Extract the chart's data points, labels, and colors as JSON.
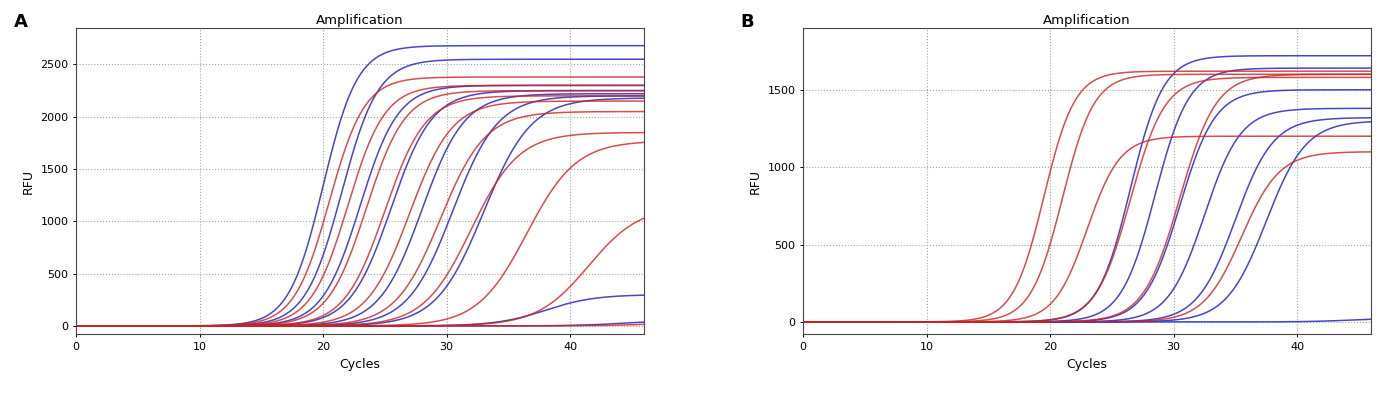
{
  "title": "Amplification",
  "xlabel": "Cycles",
  "ylabel": "RFU",
  "panel_A_label": "A",
  "panel_B_label": "B",
  "blue_color": "#3333bb",
  "red_color": "#cc2222",
  "background": "#ffffff",
  "grid_color": "#999999",
  "panel_A": {
    "xlim": [
      0,
      46
    ],
    "ylim": [
      -80,
      2850
    ],
    "yticks": [
      0,
      500,
      1000,
      1500,
      2000,
      2500
    ],
    "xticks": [
      0,
      10,
      20,
      30,
      40
    ],
    "blue_curves": [
      {
        "midpoint": 20.0,
        "L": 2680,
        "k": 0.72
      },
      {
        "midpoint": 21.5,
        "L": 2550,
        "k": 0.68
      },
      {
        "midpoint": 23.0,
        "L": 2300,
        "k": 0.65
      },
      {
        "midpoint": 25.5,
        "L": 2250,
        "k": 0.6
      },
      {
        "midpoint": 28.0,
        "L": 2220,
        "k": 0.58
      },
      {
        "midpoint": 30.5,
        "L": 2200,
        "k": 0.55
      },
      {
        "midpoint": 33.0,
        "L": 2180,
        "k": 0.52
      },
      {
        "midpoint": 38.0,
        "L": 300,
        "k": 0.5
      },
      {
        "midpoint": 44.5,
        "L": 55,
        "k": 0.48
      }
    ],
    "red_curves": [
      {
        "midpoint": 20.5,
        "L": 2380,
        "k": 0.7
      },
      {
        "midpoint": 22.0,
        "L": 2300,
        "k": 0.67
      },
      {
        "midpoint": 23.5,
        "L": 2250,
        "k": 0.64
      },
      {
        "midpoint": 25.0,
        "L": 2200,
        "k": 0.61
      },
      {
        "midpoint": 27.0,
        "L": 2150,
        "k": 0.58
      },
      {
        "midpoint": 29.5,
        "L": 2050,
        "k": 0.55
      },
      {
        "midpoint": 32.0,
        "L": 1850,
        "k": 0.52
      },
      {
        "midpoint": 36.5,
        "L": 1770,
        "k": 0.5
      },
      {
        "midpoint": 41.5,
        "L": 1150,
        "k": 0.48
      },
      {
        "midpoint": 47.0,
        "L": 40,
        "k": 0.45
      }
    ]
  },
  "panel_B": {
    "xlim": [
      0,
      46
    ],
    "ylim": [
      -80,
      1900
    ],
    "yticks": [
      0,
      500,
      1000,
      1500
    ],
    "xticks": [
      0,
      10,
      20,
      30,
      40
    ],
    "blue_curves": [
      {
        "midpoint": 26.5,
        "L": 1720,
        "k": 0.75
      },
      {
        "midpoint": 28.5,
        "L": 1640,
        "k": 0.73
      },
      {
        "midpoint": 30.5,
        "L": 1500,
        "k": 0.7
      },
      {
        "midpoint": 32.5,
        "L": 1380,
        "k": 0.68
      },
      {
        "midpoint": 35.0,
        "L": 1320,
        "k": 0.65
      },
      {
        "midpoint": 37.5,
        "L": 1300,
        "k": 0.62
      },
      {
        "midpoint": 44.5,
        "L": 25,
        "k": 0.55
      }
    ],
    "red_curves": [
      {
        "midpoint": 19.5,
        "L": 1620,
        "k": 0.8
      },
      {
        "midpoint": 21.0,
        "L": 1600,
        "k": 0.78
      },
      {
        "midpoint": 23.0,
        "L": 1200,
        "k": 0.75
      },
      {
        "midpoint": 26.5,
        "L": 1580,
        "k": 0.72
      },
      {
        "midpoint": 30.5,
        "L": 1600,
        "k": 0.68
      },
      {
        "midpoint": 35.5,
        "L": 1100,
        "k": 0.65
      }
    ]
  }
}
